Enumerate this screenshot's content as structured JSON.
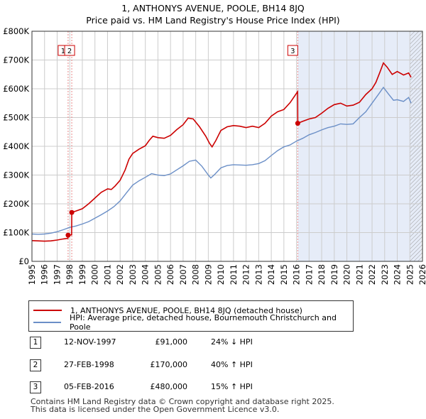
{
  "title_line1": "1, ANTHONYS AVENUE, POOLE, BH14 8JQ",
  "title_line2": "Price paid vs. HM Land Registry's House Price Index (HPI)",
  "colors": {
    "price_paid": "#cc0000",
    "hpi": "#6b8fc7",
    "shade": "#e6ecf8",
    "grid": "#cccccc",
    "marker_line": "#e88888"
  },
  "legend": {
    "price_paid": "1, ANTHONYS AVENUE, POOLE, BH14 8JQ (detached house)",
    "hpi": "HPI: Average price, detached house, Bournemouth Christchurch and Poole"
  },
  "transactions": [
    {
      "num": "1",
      "date": "12-NOV-1997",
      "price": "£91,000",
      "hpi": "24% ↓ HPI"
    },
    {
      "num": "2",
      "date": "27-FEB-1998",
      "price": "£170,000",
      "hpi": "40% ↑ HPI"
    },
    {
      "num": "3",
      "date": "05-FEB-2016",
      "price": "£480,000",
      "hpi": "15% ↑ HPI"
    }
  ],
  "footer": {
    "line1": "Contains HM Land Registry data © Crown copyright and database right 2025.",
    "line2": "This data is licensed under the Open Government Licence v3.0."
  },
  "chart_data": {
    "type": "line",
    "title": "Price paid vs. HM Land Registry's House Price Index (HPI)",
    "xlim": [
      1995,
      2026
    ],
    "ylim": [
      0,
      800000
    ],
    "x_ticks": [
      1995,
      1996,
      1997,
      1998,
      1999,
      2000,
      2001,
      2002,
      2003,
      2004,
      2005,
      2006,
      2007,
      2008,
      2009,
      2010,
      2011,
      2012,
      2013,
      2014,
      2015,
      2016,
      2017,
      2018,
      2019,
      2020,
      2021,
      2022,
      2023,
      2024,
      2025,
      2026
    ],
    "x_tick_labels": [
      "1995",
      "1996",
      "1997",
      "1998",
      "1999",
      "2000",
      "2001",
      "2002",
      "2003",
      "2004",
      "2005",
      "2006",
      "2007",
      "2008",
      "2009",
      "2010",
      "2011",
      "2012",
      "2013",
      "2014",
      "2015",
      "2016",
      "2017",
      "2018",
      "2019",
      "2020",
      "2021",
      "2022",
      "2023",
      "2024",
      "2025",
      "2026"
    ],
    "y_ticks": [
      0,
      100000,
      200000,
      300000,
      400000,
      500000,
      600000,
      700000,
      800000
    ],
    "y_tick_labels": [
      "£0",
      "£100K",
      "£200K",
      "£300K",
      "£400K",
      "£500K",
      "£600K",
      "£700K",
      "£800K"
    ],
    "shaded_range": [
      2016.1,
      2025.9
    ],
    "hatched_from": 2025.0,
    "event_markers": [
      {
        "label": "1",
        "x": 1997.87,
        "y": 91000
      },
      {
        "label": "2",
        "x": 1998.16,
        "y": 170000
      },
      {
        "label": "3",
        "x": 2016.1,
        "y": 480000
      }
    ],
    "series": [
      {
        "name": "1, ANTHONYS AVENUE, POOLE, BH14 8JQ (detached house)",
        "x": [
          1995,
          1995.5,
          1996,
          1996.5,
          1997,
          1997.5,
          1997.86,
          1997.87,
          1998.15,
          1998.16,
          1998.5,
          1999,
          1999.5,
          2000,
          2000.5,
          2001,
          2001.3,
          2001.6,
          2002,
          2002.4,
          2002.7,
          2003,
          2003.5,
          2004,
          2004.3,
          2004.6,
          2005,
          2005.5,
          2006,
          2006.5,
          2007,
          2007.4,
          2007.8,
          2008.3,
          2008.8,
          2009.1,
          2009.3,
          2009.6,
          2010,
          2010.5,
          2011,
          2011.5,
          2012,
          2012.5,
          2013,
          2013.5,
          2014,
          2014.5,
          2015,
          2015.5,
          2016.09,
          2016.1,
          2016.5,
          2017,
          2017.5,
          2018,
          2018.5,
          2019,
          2019.5,
          2020,
          2020.5,
          2021,
          2021.5,
          2022,
          2022.3,
          2022.6,
          2022.9,
          2023.2,
          2023.6,
          2024,
          2024.5,
          2024.9,
          2025.1
        ],
        "y": [
          72000,
          71000,
          70000,
          71000,
          74000,
          78000,
          80000,
          91000,
          92000,
          170000,
          175000,
          183000,
          200000,
          220000,
          240000,
          252000,
          250000,
          262000,
          282000,
          318000,
          355000,
          375000,
          390000,
          402000,
          420000,
          435000,
          430000,
          428000,
          438000,
          458000,
          475000,
          498000,
          495000,
          468000,
          435000,
          410000,
          398000,
          420000,
          455000,
          468000,
          472000,
          470000,
          465000,
          470000,
          465000,
          480000,
          505000,
          520000,
          528000,
          552000,
          590000,
          480000,
          487000,
          495000,
          500000,
          515000,
          532000,
          545000,
          550000,
          540000,
          543000,
          553000,
          580000,
          600000,
          622000,
          655000,
          690000,
          675000,
          650000,
          660000,
          648000,
          655000,
          640000
        ]
      },
      {
        "name": "HPI: Average price, detached house, Bournemouth Christchurch and Poole",
        "x": [
          1995,
          1995.5,
          1996,
          1996.5,
          1997,
          1997.5,
          1998,
          1998.5,
          1999,
          1999.5,
          2000,
          2000.5,
          2001,
          2001.5,
          2002,
          2002.5,
          2003,
          2003.5,
          2004,
          2004.5,
          2005,
          2005.5,
          2006,
          2006.5,
          2007,
          2007.5,
          2008,
          2008.5,
          2009,
          2009.2,
          2009.5,
          2010,
          2010.5,
          2011,
          2011.5,
          2012,
          2012.5,
          2013,
          2013.5,
          2014,
          2014.5,
          2015,
          2015.5,
          2016,
          2016.5,
          2017,
          2017.5,
          2018,
          2018.5,
          2019,
          2019.5,
          2020,
          2020.5,
          2021,
          2021.5,
          2022,
          2022.5,
          2022.9,
          2023.3,
          2023.7,
          2024,
          2024.5,
          2024.9,
          2025.1
        ],
        "y": [
          95000,
          94000,
          95000,
          98000,
          103000,
          110000,
          118000,
          123000,
          130000,
          138000,
          150000,
          162000,
          175000,
          190000,
          210000,
          238000,
          265000,
          280000,
          292000,
          305000,
          300000,
          298000,
          304000,
          318000,
          332000,
          348000,
          352000,
          330000,
          300000,
          290000,
          302000,
          325000,
          333000,
          336000,
          335000,
          334000,
          336000,
          340000,
          350000,
          368000,
          385000,
          398000,
          405000,
          418000,
          428000,
          440000,
          448000,
          457000,
          465000,
          470000,
          478000,
          476000,
          478000,
          500000,
          520000,
          550000,
          580000,
          605000,
          582000,
          560000,
          562000,
          556000,
          570000,
          550000
        ]
      }
    ]
  }
}
